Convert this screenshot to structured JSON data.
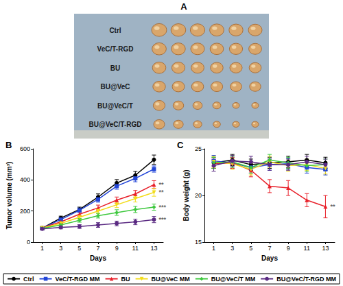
{
  "panel_a": {
    "label": "A",
    "rows": [
      "Ctrl",
      "VeC/T-RGD",
      "BU",
      "BU@VeC",
      "BU@VeC/T",
      "BU@VeC/T-RGD"
    ]
  },
  "chart_data": [
    {
      "panel": "B",
      "type": "line",
      "x_label": "Days",
      "y_label": "Tumor volume (mm³)",
      "x": [
        1,
        3,
        5,
        7,
        9,
        11,
        13
      ],
      "xlim": [
        0,
        14
      ],
      "xticks": [
        1,
        3,
        5,
        7,
        9,
        11,
        13
      ],
      "ylim": [
        0,
        600
      ],
      "yticks": [
        0,
        200,
        400,
        600
      ],
      "grid": false,
      "legend": "bottom",
      "series": [
        {
          "name": "Ctrl",
          "color": "#000000",
          "marker": "circle",
          "values": [
            90,
            155,
            210,
            290,
            380,
            430,
            530
          ],
          "errors": [
            8,
            12,
            15,
            20,
            22,
            25,
            30
          ]
        },
        {
          "name": "VeC/T-RGD MM",
          "color": "#2346d8",
          "marker": "square",
          "values": [
            90,
            145,
            205,
            275,
            360,
            410,
            470
          ],
          "errors": [
            8,
            10,
            15,
            18,
            20,
            22,
            20
          ]
        },
        {
          "name": "BU",
          "color": "#e8202a",
          "marker": "triangle",
          "values": [
            92,
            130,
            180,
            220,
            270,
            310,
            370
          ],
          "errors": [
            8,
            10,
            15,
            18,
            20,
            22,
            25
          ],
          "annotation": "**"
        },
        {
          "name": "BU@VeC MM",
          "color": "#f2dc1a",
          "marker": "triangle-down",
          "values": [
            90,
            120,
            160,
            200,
            240,
            280,
            320
          ],
          "errors": [
            8,
            10,
            12,
            15,
            18,
            22,
            25
          ],
          "annotation": "**"
        },
        {
          "name": "BU@VeC/T MM",
          "color": "#3ec83e",
          "marker": "diamond",
          "values": [
            88,
            110,
            140,
            170,
            190,
            210,
            225
          ],
          "errors": [
            8,
            10,
            12,
            15,
            18,
            20,
            20
          ],
          "annotation": "***"
        },
        {
          "name": "BU@VeC/T-RGD MM",
          "color": "#5a2a82",
          "marker": "circle",
          "values": [
            85,
            95,
            100,
            110,
            120,
            130,
            145
          ],
          "errors": [
            8,
            10,
            12,
            15,
            15,
            18,
            20
          ],
          "annotation": "***"
        }
      ]
    },
    {
      "panel": "C",
      "type": "line",
      "x_label": "Days",
      "y_label": "Body weight (g)",
      "x": [
        1,
        3,
        5,
        7,
        9,
        11,
        13
      ],
      "xlim": [
        0,
        14
      ],
      "xticks": [
        1,
        3,
        5,
        7,
        9,
        11,
        13
      ],
      "ylim": [
        15,
        25
      ],
      "yticks": [
        15,
        20,
        25
      ],
      "grid": false,
      "series": [
        {
          "name": "Ctrl",
          "color": "#000000",
          "marker": "circle",
          "values": [
            23.5,
            23.8,
            23.3,
            23.5,
            23.6,
            23.8,
            23.5
          ],
          "errors": [
            0.6,
            0.6,
            0.6,
            0.6,
            0.6,
            0.6,
            0.6
          ]
        },
        {
          "name": "VeC/T-RGD MM",
          "color": "#2346d8",
          "marker": "square",
          "values": [
            23.7,
            23.5,
            23.0,
            23.3,
            23.4,
            23.0,
            22.8
          ],
          "errors": [
            0.6,
            0.6,
            0.6,
            0.6,
            0.6,
            0.6,
            0.6
          ]
        },
        {
          "name": "BU",
          "color": "#e8202a",
          "marker": "triangle",
          "values": [
            23.4,
            23.5,
            22.7,
            21.0,
            20.8,
            19.5,
            18.8
          ],
          "errors": [
            0.5,
            0.6,
            0.7,
            0.7,
            0.8,
            0.7,
            1.2
          ],
          "annotation": "**"
        },
        {
          "name": "BU@VeC MM",
          "color": "#f2dc1a",
          "marker": "triangle-down",
          "values": [
            23.6,
            23.4,
            22.8,
            23.6,
            23.2,
            23.3,
            22.9
          ],
          "errors": [
            0.6,
            0.6,
            0.6,
            0.6,
            0.6,
            0.6,
            0.6
          ]
        },
        {
          "name": "BU@VeC/T MM",
          "color": "#3ec83e",
          "marker": "diamond",
          "values": [
            23.5,
            23.6,
            23.0,
            23.8,
            23.5,
            23.2,
            23.3
          ],
          "errors": [
            0.6,
            0.6,
            0.6,
            0.6,
            0.6,
            0.6,
            0.6
          ]
        },
        {
          "name": "BU@VeC/T-RGD MM",
          "color": "#5a2a82",
          "marker": "circle",
          "values": [
            23.2,
            23.7,
            23.6,
            23.3,
            23.3,
            23.6,
            23.3
          ],
          "errors": [
            0.6,
            0.6,
            0.6,
            0.6,
            0.6,
            0.6,
            0.6
          ]
        }
      ]
    }
  ]
}
